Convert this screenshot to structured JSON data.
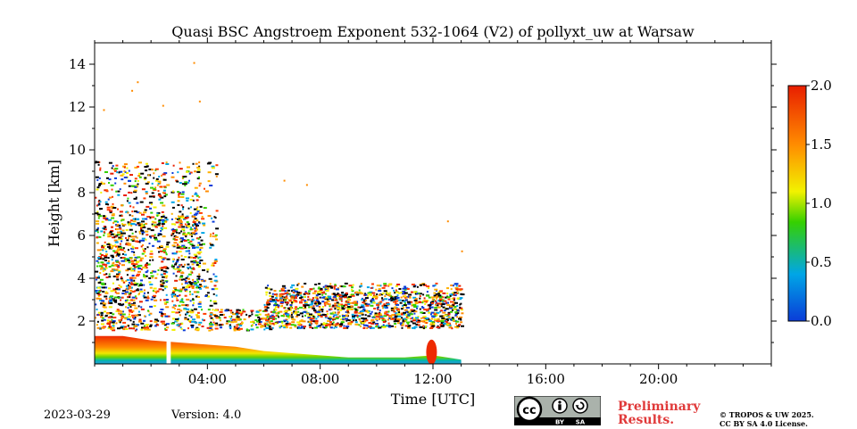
{
  "chart_data": {
    "type": "heatmap",
    "title": "Quasi BSC Angstroem Exponent 532-1064 (V2) of pollyxt_uw at Warsaw",
    "xlabel": "Time [UTC]",
    "ylabel": "Height [km]",
    "x_unit": "hours UTC",
    "xlim": [
      0,
      24
    ],
    "ylim": [
      0,
      15
    ],
    "x_ticks": [
      4,
      8,
      12,
      16,
      20
    ],
    "x_tick_labels": [
      "04:00",
      "08:00",
      "12:00",
      "16:00",
      "20:00"
    ],
    "y_ticks": [
      2,
      4,
      6,
      8,
      10,
      12,
      14
    ],
    "y_tick_labels": [
      "2",
      "4",
      "6",
      "8",
      "10",
      "12",
      "14"
    ],
    "colorbar": {
      "range": [
        0.0,
        2.0
      ],
      "ticks": [
        0.0,
        0.5,
        1.0,
        1.5,
        2.0
      ],
      "tick_labels": [
        "0.0",
        "0.5",
        "1.0",
        "1.5",
        "2.0"
      ],
      "colormap": [
        "#0a3cd8",
        "#00a6e6",
        "#35d000",
        "#f2f200",
        "#ff8c00",
        "#e81e00"
      ]
    },
    "layers": [
      {
        "name": "boundary layer",
        "t_start": 0.0,
        "t_end": 13.0,
        "top_km": [
          1.3,
          1.3,
          1.1,
          1.0,
          0.9,
          0.8,
          0.6,
          0.5,
          0.4,
          0.3,
          0.3,
          0.3,
          0.4,
          0.2
        ],
        "value": 1.8
      },
      {
        "name": "scattered cloud signal (0-4 UTC)",
        "t_start": 0.0,
        "t_end": 4.3,
        "bottom_km": 1.6,
        "top_km": 9.5
      },
      {
        "name": "scattered signal (6-13 UTC)",
        "t_start": 6.0,
        "t_end": 13.0,
        "bottom_km": 1.7,
        "top_km": 3.8
      }
    ],
    "data_gap": {
      "t_start": 2.55,
      "t_end": 2.7
    }
  },
  "footer": {
    "date": "2023-03-29",
    "version": "Version: 4.0",
    "preliminary_line1": "Preliminary",
    "preliminary_line2": "Results.",
    "copyright_line1": "© TROPOS & UW 2025.",
    "copyright_line2": "CC BY SA 4.0 License.",
    "license_badge": {
      "cc": "cc",
      "by": "BY",
      "sa": "SA"
    }
  }
}
